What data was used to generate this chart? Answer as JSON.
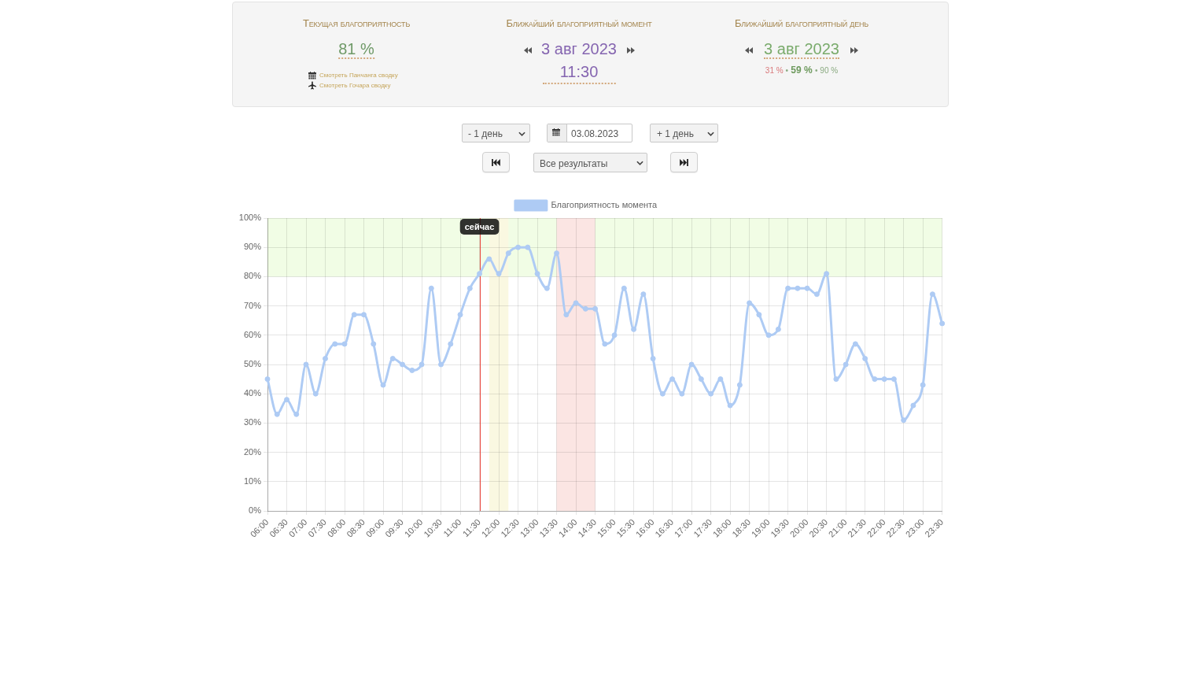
{
  "chart_data": {
    "type": "line",
    "annotations": [
      "Текущая благоприятность",
      "81 %",
      "Смотреть Панчанга сводку",
      "Смотреть Гочара сводку",
      "Ближайший благоприятный момент",
      "3 авг 2023",
      "11:30",
      "Ближайший благоприятный день",
      "3 авг 2023",
      "31 % • 59 % • 90 %",
      "- 1 день",
      "03.08.2023",
      "+ 1 день",
      "Все результаты"
    ],
    "x": [
      6,
      6.25,
      6.5,
      6.75,
      7,
      7.25,
      7.5,
      7.75,
      8,
      8.25,
      8.5,
      8.75,
      9,
      9.25,
      9.5,
      9.75,
      10,
      10.25,
      10.5,
      10.75,
      11,
      11.25,
      11.5,
      11.75,
      12,
      12.25,
      12.5,
      12.75,
      13,
      13.25,
      13.5,
      13.75,
      14,
      14.25,
      14.5,
      14.75,
      15,
      15.25,
      15.5,
      15.75,
      16,
      16.25,
      16.5,
      16.75,
      17,
      17.25,
      17.5,
      17.75,
      18,
      18.25,
      18.5,
      18.75,
      19,
      19.25,
      19.5,
      19.75,
      20,
      20.25,
      20.5,
      20.75,
      21,
      21.25,
      21.5,
      21.75,
      22,
      22.25,
      22.5,
      22.75,
      23,
      23.25,
      23.5
    ],
    "series": [
      {
        "name": "Благоприятность момента",
        "color": "#aecbf4",
        "values": [
          45,
          33,
          38,
          33,
          50,
          40,
          52,
          57,
          57,
          67,
          67,
          57,
          43,
          52,
          50,
          48,
          50,
          76,
          50,
          57,
          67,
          76,
          81,
          86,
          81,
          88,
          90,
          90,
          81,
          76,
          88,
          67,
          71,
          69,
          69,
          57,
          60,
          76,
          62,
          74,
          52,
          40,
          45,
          40,
          50,
          45,
          40,
          45,
          36,
          43,
          71,
          67,
          60,
          62,
          76,
          76,
          76,
          74,
          81,
          45,
          50,
          57,
          52,
          45,
          45,
          45,
          31,
          36,
          43,
          74,
          64
        ]
      }
    ],
    "xlim": [
      6,
      23.5
    ],
    "xticks": [
      {
        "value": 6,
        "label": "06:00"
      },
      {
        "value": 6.5,
        "label": "06:30"
      },
      {
        "value": 7,
        "label": "07:00"
      },
      {
        "value": 7.5,
        "label": "07:30"
      },
      {
        "value": 8,
        "label": "08:00"
      },
      {
        "value": 8.5,
        "label": "08:30"
      },
      {
        "value": 9,
        "label": "09:00"
      },
      {
        "value": 9.5,
        "label": "09:30"
      },
      {
        "value": 10,
        "label": "10:00"
      },
      {
        "value": 10.5,
        "label": "10:30"
      },
      {
        "value": 11,
        "label": "11:00"
      },
      {
        "value": 11.5,
        "label": "11:30"
      },
      {
        "value": 12,
        "label": "12:00"
      },
      {
        "value": 12.5,
        "label": "12:30"
      },
      {
        "value": 13,
        "label": "13:00"
      },
      {
        "value": 13.5,
        "label": "13:30"
      },
      {
        "value": 14,
        "label": "14:00"
      },
      {
        "value": 14.5,
        "label": "14:30"
      },
      {
        "value": 15,
        "label": "15:00"
      },
      {
        "value": 15.5,
        "label": "15:30"
      },
      {
        "value": 16,
        "label": "16:00"
      },
      {
        "value": 16.5,
        "label": "16:30"
      },
      {
        "value": 17,
        "label": "17:00"
      },
      {
        "value": 17.5,
        "label": "17:30"
      },
      {
        "value": 18,
        "label": "18:00"
      },
      {
        "value": 18.5,
        "label": "18:30"
      },
      {
        "value": 19,
        "label": "19:00"
      },
      {
        "value": 19.5,
        "label": "19:30"
      },
      {
        "value": 20,
        "label": "20:00"
      },
      {
        "value": 20.5,
        "label": "20:30"
      },
      {
        "value": 21,
        "label": "21:00"
      },
      {
        "value": 21.5,
        "label": "21:30"
      },
      {
        "value": 22,
        "label": "22:00"
      },
      {
        "value": 22.5,
        "label": "22:30"
      },
      {
        "value": 23,
        "label": "23:00"
      },
      {
        "value": 23.5,
        "label": "23:30"
      }
    ],
    "ylim": [
      0,
      100
    ],
    "yticks": [
      {
        "value": 0,
        "label": "0%"
      },
      {
        "value": 10,
        "label": "10%"
      },
      {
        "value": 20,
        "label": "20%"
      },
      {
        "value": 30,
        "label": "30%"
      },
      {
        "value": 40,
        "label": "40%"
      },
      {
        "value": 50,
        "label": "50%"
      },
      {
        "value": 60,
        "label": "60%"
      },
      {
        "value": 70,
        "label": "70%"
      },
      {
        "value": 80,
        "label": "80%"
      },
      {
        "value": 90,
        "label": "90%"
      },
      {
        "value": 100,
        "label": "100%"
      }
    ],
    "bands": [
      {
        "axis": "y",
        "from": 80,
        "to": 100,
        "color": "#f1fde5"
      },
      {
        "axis": "x",
        "from": 11.75,
        "to": 12.25,
        "color": "#faf8e1"
      },
      {
        "axis": "x",
        "from": 13.5,
        "to": 14.5,
        "color": "#fbe5e3"
      }
    ],
    "ref_lines": [
      {
        "axis": "x",
        "value": 11.5,
        "label": "сейчас",
        "color": "#e8453c"
      }
    ],
    "grid": true,
    "legend": "top",
    "marker": "circle"
  }
}
